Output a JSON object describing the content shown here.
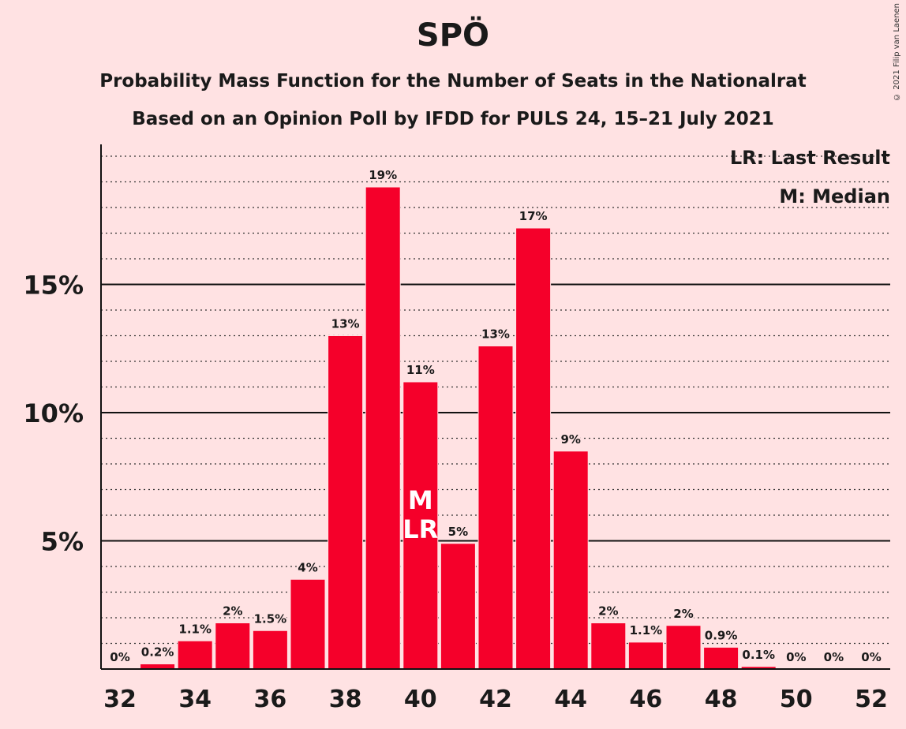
{
  "header": {
    "title": "SPÖ",
    "subtitle1": "Probability Mass Function for the Number of Seats in the Nationalrat",
    "subtitle2": "Based on an Opinion Poll by IFDD for PULS 24, 15–21 July 2021",
    "copyright": "© 2021 Filip van Laenen"
  },
  "chart_data": {
    "type": "bar",
    "x": [
      32,
      33,
      34,
      35,
      36,
      37,
      38,
      39,
      40,
      41,
      42,
      43,
      44,
      45,
      46,
      47,
      48,
      49,
      50,
      51,
      52
    ],
    "values": [
      0,
      0.2,
      1.1,
      1.8,
      1.5,
      3.5,
      13.0,
      18.8,
      11.2,
      4.9,
      12.6,
      17.2,
      8.5,
      1.8,
      1.05,
      1.7,
      0.85,
      0.1,
      0,
      0,
      0
    ],
    "data_labels": [
      "0%",
      "0.2%",
      "1.1%",
      "2%",
      "1.5%",
      "4%",
      "13%",
      "19%",
      "11%",
      "5%",
      "13%",
      "17%",
      "9%",
      "2%",
      "1.1%",
      "2%",
      "0.9%",
      "0.1%",
      "0%",
      "0%",
      "0%"
    ],
    "x_tick_labels": [
      "32",
      "34",
      "36",
      "38",
      "40",
      "42",
      "44",
      "46",
      "48",
      "50",
      "52"
    ],
    "x_tick_values": [
      32,
      34,
      36,
      38,
      40,
      42,
      44,
      46,
      48,
      50,
      52
    ],
    "y_ticks": [
      5,
      10,
      15
    ],
    "y_tick_labels": [
      "5%",
      "10%",
      "15%"
    ],
    "ylim": [
      0,
      20.5
    ],
    "minor_grid_step": 1,
    "median": 40,
    "last_result": 40,
    "marker_median": "M",
    "marker_last_result": "LR",
    "legend": [
      "LR: Last Result",
      "M: Median"
    ],
    "legend_position": "top-right",
    "bar_color": "#f5002a",
    "background_color": "#ffe2e3"
  }
}
